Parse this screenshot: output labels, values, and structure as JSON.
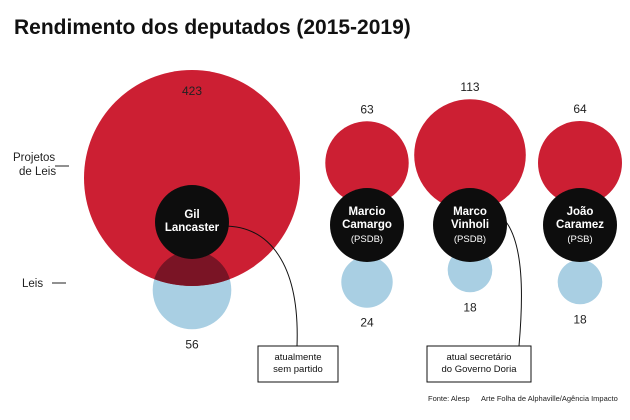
{
  "chart_data": {
    "type": "bubble",
    "title": "Rendimento dos deputados (2015-2019)",
    "row_labels": {
      "projetos": "Projetos de Leis",
      "leis": "Leis"
    },
    "series_names": [
      "Projetos de Leis",
      "Leis"
    ],
    "deputies": [
      {
        "name_lines": [
          "Gil",
          "Lancaster"
        ],
        "party": "",
        "projetos": 423,
        "leis": 56,
        "note_lines": [
          "atualmente",
          "sem partido"
        ]
      },
      {
        "name_lines": [
          "Marcio",
          "Camargo"
        ],
        "party": "(PSDB)",
        "projetos": 63,
        "leis": 24,
        "note_lines": []
      },
      {
        "name_lines": [
          "Marco",
          "Vinholi"
        ],
        "party": "(PSDB)",
        "projetos": 113,
        "leis": 18,
        "note_lines": [
          "atual secretário",
          "do Governo Doria"
        ]
      },
      {
        "name_lines": [
          "João",
          "Caramez"
        ],
        "party": "(PSB)",
        "projetos": 64,
        "leis": 18,
        "note_lines": []
      }
    ],
    "colors": {
      "projetos": "#cc1f33",
      "leis": "#a9cfe3",
      "overlap": "#7a1425",
      "name_disc": "#0d0d0d"
    },
    "source": "Fonte: Alesp",
    "credit": "Arte Folha de Alphaville/Agência Impacto"
  }
}
